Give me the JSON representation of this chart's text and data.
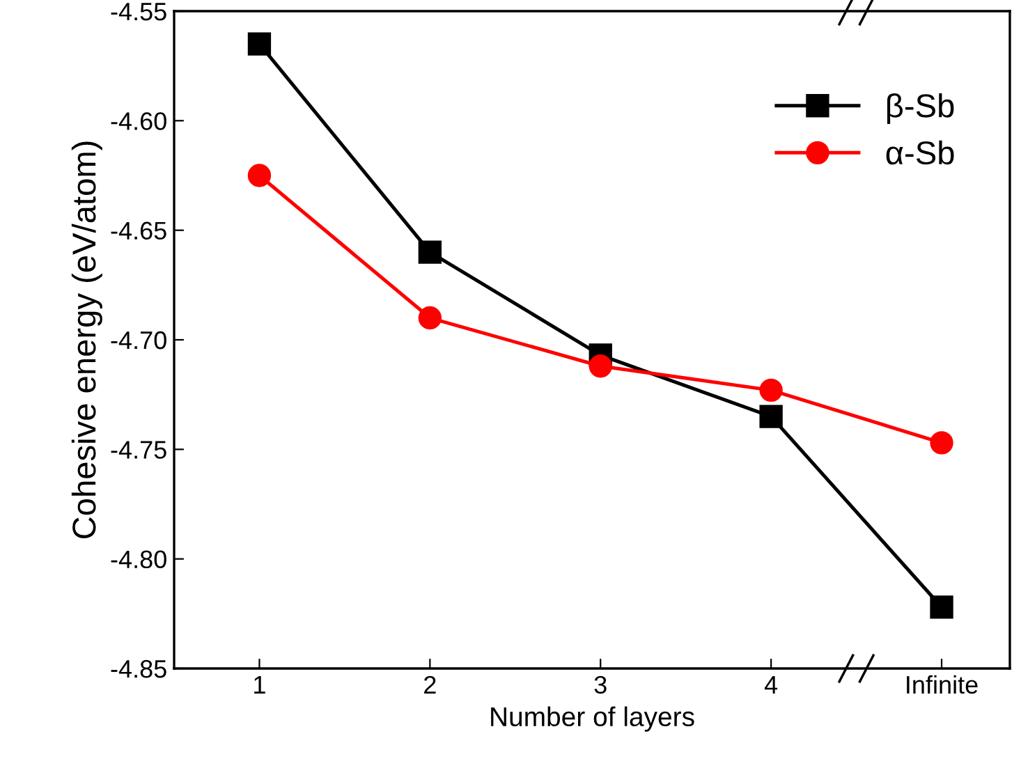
{
  "chart_data": {
    "type": "line",
    "xlabel": "Number of layers",
    "ylabel": "Cohesive energy (eV/atom)",
    "categories": [
      "1",
      "2",
      "3",
      "4",
      "Infinite"
    ],
    "series": [
      {
        "name": "β-Sb",
        "color": "#000000",
        "marker": "square",
        "values": [
          -4.565,
          -4.66,
          -4.707,
          -4.735,
          -4.822
        ]
      },
      {
        "name": "α-Sb",
        "color": "#ff0000",
        "marker": "circle",
        "values": [
          -4.625,
          -4.69,
          -4.712,
          -4.723,
          -4.747
        ]
      }
    ],
    "ylim": [
      -4.85,
      -4.55
    ],
    "yticks": [
      {
        "value": -4.85,
        "label": "-4.85"
      },
      {
        "value": -4.8,
        "label": "-4.80"
      },
      {
        "value": -4.75,
        "label": "-4.75"
      },
      {
        "value": -4.7,
        "label": "-4.70"
      },
      {
        "value": -4.65,
        "label": "-4.65"
      },
      {
        "value": -4.6,
        "label": "-4.60"
      },
      {
        "value": -4.55,
        "label": "-4.55"
      }
    ],
    "grid": false,
    "legend": "top right",
    "line_style": "solid"
  }
}
